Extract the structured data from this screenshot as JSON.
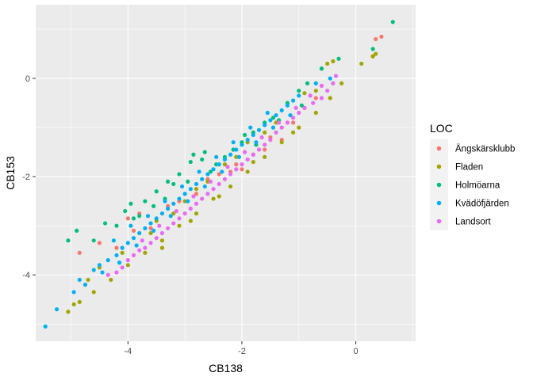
{
  "chart_data": {
    "type": "scatter",
    "title": "",
    "xlabel": "CB138",
    "ylabel": "CB153",
    "xlim": [
      -5.62,
      1.05
    ],
    "ylim": [
      -5.35,
      1.5
    ],
    "x_ticks": [
      -4,
      -2,
      0
    ],
    "x_tick_labels": [
      "-4",
      "-2",
      "0"
    ],
    "y_ticks": [
      0,
      -2,
      -4
    ],
    "y_tick_labels": [
      "0",
      "-2",
      "-4"
    ],
    "grid": true,
    "background": "#ebebeb",
    "legend": {
      "title": "LOC",
      "position": "right",
      "entries": [
        "Ängskärsklubb",
        "Fladen",
        "Holmöarna",
        "Kvädöfjärden",
        "Landsort"
      ]
    },
    "series": [
      {
        "name": "Ängskärsklubb",
        "color": "#F8766D",
        "points": [
          [
            0.45,
            0.85
          ],
          [
            0.35,
            0.8
          ],
          [
            -4.85,
            -3.55
          ],
          [
            -4.5,
            -3.35
          ],
          [
            -3.9,
            -3.1
          ],
          [
            -3.3,
            -2.6
          ],
          [
            -2.6,
            -2.05
          ],
          [
            -2.1,
            -1.75
          ],
          [
            -1.5,
            -1.2
          ],
          [
            -1.1,
            -0.9
          ],
          [
            -0.7,
            -0.4
          ],
          [
            -2.8,
            -2.35
          ],
          [
            -3.6,
            -3.05
          ],
          [
            -4.2,
            -3.45
          ],
          [
            -1.8,
            -1.55
          ],
          [
            -2.4,
            -1.95
          ],
          [
            -1.3,
            -1.25
          ],
          [
            -0.9,
            -0.6
          ],
          [
            -3.1,
            -2.5
          ],
          [
            -2.0,
            -1.85
          ],
          [
            -1.6,
            -1.45
          ],
          [
            -2.2,
            -1.9
          ],
          [
            -3.8,
            -2.75
          ],
          [
            -4.0,
            -2.85
          ]
        ]
      },
      {
        "name": "Fladen",
        "color": "#A3A500",
        "points": [
          [
            -5.05,
            -4.75
          ],
          [
            -4.95,
            -4.6
          ],
          [
            -4.85,
            -4.55
          ],
          [
            -4.6,
            -4.35
          ],
          [
            -4.3,
            -4.1
          ],
          [
            -4.0,
            -3.8
          ],
          [
            -3.7,
            -3.55
          ],
          [
            -3.4,
            -3.3
          ],
          [
            -3.1,
            -3.0
          ],
          [
            -2.8,
            -2.75
          ],
          [
            -2.5,
            -2.45
          ],
          [
            -2.2,
            -2.2
          ],
          [
            -1.9,
            -1.9
          ],
          [
            -1.6,
            -1.6
          ],
          [
            -1.3,
            -1.3
          ],
          [
            -1.0,
            -1.0
          ],
          [
            -0.7,
            -0.7
          ],
          [
            -0.45,
            -0.4
          ],
          [
            -0.25,
            -0.1
          ],
          [
            0.1,
            0.3
          ],
          [
            0.3,
            0.45
          ],
          [
            0.35,
            0.5
          ],
          [
            0.3,
            0.45
          ],
          [
            -0.9,
            -0.3
          ],
          [
            -0.7,
            -0.25
          ],
          [
            -1.4,
            -0.9
          ],
          [
            -1.9,
            -1.3
          ],
          [
            -2.3,
            -1.75
          ],
          [
            -2.8,
            -2.25
          ],
          [
            -3.2,
            -2.75
          ],
          [
            -3.6,
            -3.15
          ],
          [
            -0.4,
            0.35
          ],
          [
            -0.5,
            0.3
          ],
          [
            -0.6,
            0.2
          ],
          [
            -1.2,
            -0.5
          ],
          [
            -1.6,
            -1.1
          ],
          [
            -2.1,
            -1.6
          ],
          [
            -2.6,
            -2.1
          ],
          [
            -3.0,
            -2.5
          ],
          [
            -3.5,
            -2.9
          ],
          [
            -4.1,
            -3.55
          ],
          [
            -4.5,
            -3.85
          ],
          [
            -4.7,
            -4.1
          ],
          [
            -3.4,
            -3.45
          ],
          [
            -2.9,
            -2.9
          ],
          [
            -2.4,
            -2.4
          ],
          [
            -1.8,
            -1.7
          ],
          [
            -1.1,
            -1.1
          ]
        ]
      },
      {
        "name": "Holmöarna",
        "color": "#00BF7D",
        "points": [
          [
            0.65,
            1.15
          ],
          [
            0.3,
            0.6
          ],
          [
            -5.05,
            -3.3
          ],
          [
            -4.9,
            -3.1
          ],
          [
            -4.4,
            -2.95
          ],
          [
            -4.05,
            -2.7
          ],
          [
            -3.95,
            -2.55
          ],
          [
            -3.8,
            -2.8
          ],
          [
            -3.7,
            -2.5
          ],
          [
            -3.5,
            -2.3
          ],
          [
            -3.3,
            -2.1
          ],
          [
            -3.2,
            -2.15
          ],
          [
            -3.1,
            -1.95
          ],
          [
            -2.9,
            -1.7
          ],
          [
            -2.85,
            -1.55
          ],
          [
            -2.7,
            -1.65
          ],
          [
            -2.65,
            -1.5
          ],
          [
            -2.45,
            -1.75
          ],
          [
            -2.3,
            -1.6
          ],
          [
            -2.15,
            -1.45
          ],
          [
            -2.0,
            -1.3
          ],
          [
            -1.8,
            -1.1
          ],
          [
            -1.6,
            -0.9
          ],
          [
            -1.45,
            -0.8
          ],
          [
            -1.2,
            -0.5
          ],
          [
            -1.0,
            -0.25
          ],
          [
            -0.85,
            -0.1
          ],
          [
            -0.6,
            0.2
          ],
          [
            -0.3,
            0.4
          ],
          [
            -2.95,
            -2.1
          ],
          [
            -3.55,
            -2.6
          ],
          [
            -4.2,
            -3.0
          ],
          [
            -4.6,
            -3.3
          ],
          [
            -1.95,
            -1.15
          ],
          [
            -2.55,
            -1.9
          ],
          [
            -3.35,
            -2.45
          ],
          [
            -3.9,
            -2.85
          ],
          [
            -1.75,
            -1.35
          ],
          [
            -1.35,
            -0.85
          ],
          [
            -0.95,
            -0.55
          ]
        ]
      },
      {
        "name": "Kvädöfjärden",
        "color": "#00B0F6",
        "points": [
          [
            -5.45,
            -5.05
          ],
          [
            -5.25,
            -4.7
          ],
          [
            -4.95,
            -4.35
          ],
          [
            -4.85,
            -4.1
          ],
          [
            -4.75,
            -4.2
          ],
          [
            -4.6,
            -3.9
          ],
          [
            -4.5,
            -3.8
          ],
          [
            -4.35,
            -3.7
          ],
          [
            -4.2,
            -3.6
          ],
          [
            -4.1,
            -3.45
          ],
          [
            -4.0,
            -3.35
          ],
          [
            -3.9,
            -3.25
          ],
          [
            -3.8,
            -3.15
          ],
          [
            -3.7,
            -3.05
          ],
          [
            -3.6,
            -2.95
          ],
          [
            -3.5,
            -2.85
          ],
          [
            -3.4,
            -2.75
          ],
          [
            -3.3,
            -2.65
          ],
          [
            -3.2,
            -2.55
          ],
          [
            -3.1,
            -2.45
          ],
          [
            -3.0,
            -2.35
          ],
          [
            -2.9,
            -2.25
          ],
          [
            -2.8,
            -2.15
          ],
          [
            -2.7,
            -2.05
          ],
          [
            -2.6,
            -1.95
          ],
          [
            -2.5,
            -1.85
          ],
          [
            -2.4,
            -1.75
          ],
          [
            -2.3,
            -1.65
          ],
          [
            -2.2,
            -1.55
          ],
          [
            -2.1,
            -1.45
          ],
          [
            -2.0,
            -1.35
          ],
          [
            -1.9,
            -1.25
          ],
          [
            -1.8,
            -1.15
          ],
          [
            -1.7,
            -1.05
          ],
          [
            -1.6,
            -0.95
          ],
          [
            -1.5,
            -0.85
          ],
          [
            -1.4,
            -0.75
          ],
          [
            -1.3,
            -0.65
          ],
          [
            -1.2,
            -0.55
          ],
          [
            -1.1,
            -0.45
          ],
          [
            -1.0,
            -0.35
          ],
          [
            -0.7,
            -0.1
          ],
          [
            -0.45,
            0.0
          ],
          [
            -4.45,
            -3.95
          ],
          [
            -4.15,
            -3.75
          ],
          [
            -3.85,
            -3.4
          ],
          [
            -3.55,
            -3.1
          ],
          [
            -3.25,
            -2.8
          ],
          [
            -2.95,
            -2.5
          ],
          [
            -2.65,
            -2.2
          ],
          [
            -2.35,
            -1.9
          ],
          [
            -2.05,
            -1.6
          ],
          [
            -1.75,
            -1.3
          ],
          [
            -1.45,
            -1.0
          ],
          [
            -1.15,
            -0.75
          ],
          [
            -3.65,
            -2.8
          ],
          [
            -3.35,
            -2.5
          ],
          [
            -3.05,
            -2.2
          ],
          [
            -2.75,
            -1.9
          ],
          [
            -2.45,
            -1.6
          ],
          [
            -2.15,
            -1.3
          ],
          [
            -1.85,
            -1.0
          ],
          [
            -1.55,
            -0.7
          ],
          [
            -4.25,
            -3.3
          ],
          [
            -3.95,
            -3.0
          ]
        ]
      },
      {
        "name": "Landsort",
        "color": "#E76BF3",
        "points": [
          [
            -4.35,
            -4.0
          ],
          [
            -4.2,
            -3.95
          ],
          [
            -4.1,
            -3.85
          ],
          [
            -4.0,
            -3.7
          ],
          [
            -3.9,
            -3.6
          ],
          [
            -3.8,
            -3.5
          ],
          [
            -3.7,
            -3.45
          ],
          [
            -3.6,
            -3.35
          ],
          [
            -3.5,
            -3.25
          ],
          [
            -3.4,
            -3.15
          ],
          [
            -3.3,
            -3.05
          ],
          [
            -3.2,
            -2.95
          ],
          [
            -3.1,
            -2.85
          ],
          [
            -3.0,
            -2.75
          ],
          [
            -2.9,
            -2.65
          ],
          [
            -2.8,
            -2.55
          ],
          [
            -2.7,
            -2.45
          ],
          [
            -2.6,
            -2.35
          ],
          [
            -2.5,
            -2.25
          ],
          [
            -2.4,
            -2.15
          ],
          [
            -2.3,
            -2.05
          ],
          [
            -2.2,
            -1.95
          ],
          [
            -2.1,
            -1.85
          ],
          [
            -2.0,
            -1.75
          ],
          [
            -1.9,
            -1.65
          ],
          [
            -1.8,
            -1.55
          ],
          [
            -1.7,
            -1.45
          ],
          [
            -1.6,
            -1.35
          ],
          [
            -1.5,
            -1.25
          ],
          [
            -1.4,
            -1.1
          ],
          [
            -1.3,
            -1.0
          ],
          [
            -1.2,
            -0.9
          ],
          [
            -1.1,
            -0.8
          ],
          [
            -1.0,
            -0.7
          ],
          [
            -0.9,
            -0.6
          ],
          [
            -0.75,
            -0.5
          ],
          [
            -0.6,
            -0.4
          ],
          [
            -0.5,
            -0.25
          ],
          [
            -0.4,
            -0.1
          ],
          [
            -0.35,
            0.05
          ],
          [
            -3.75,
            -3.3
          ],
          [
            -3.45,
            -3.0
          ],
          [
            -3.15,
            -2.7
          ],
          [
            -2.85,
            -2.4
          ],
          [
            -2.55,
            -2.1
          ],
          [
            -2.25,
            -1.8
          ],
          [
            -1.95,
            -1.5
          ],
          [
            -1.65,
            -1.2
          ],
          [
            -1.35,
            -0.9
          ],
          [
            -1.05,
            -0.6
          ],
          [
            -0.8,
            -0.35
          ],
          [
            -0.6,
            -0.15
          ]
        ]
      }
    ]
  }
}
